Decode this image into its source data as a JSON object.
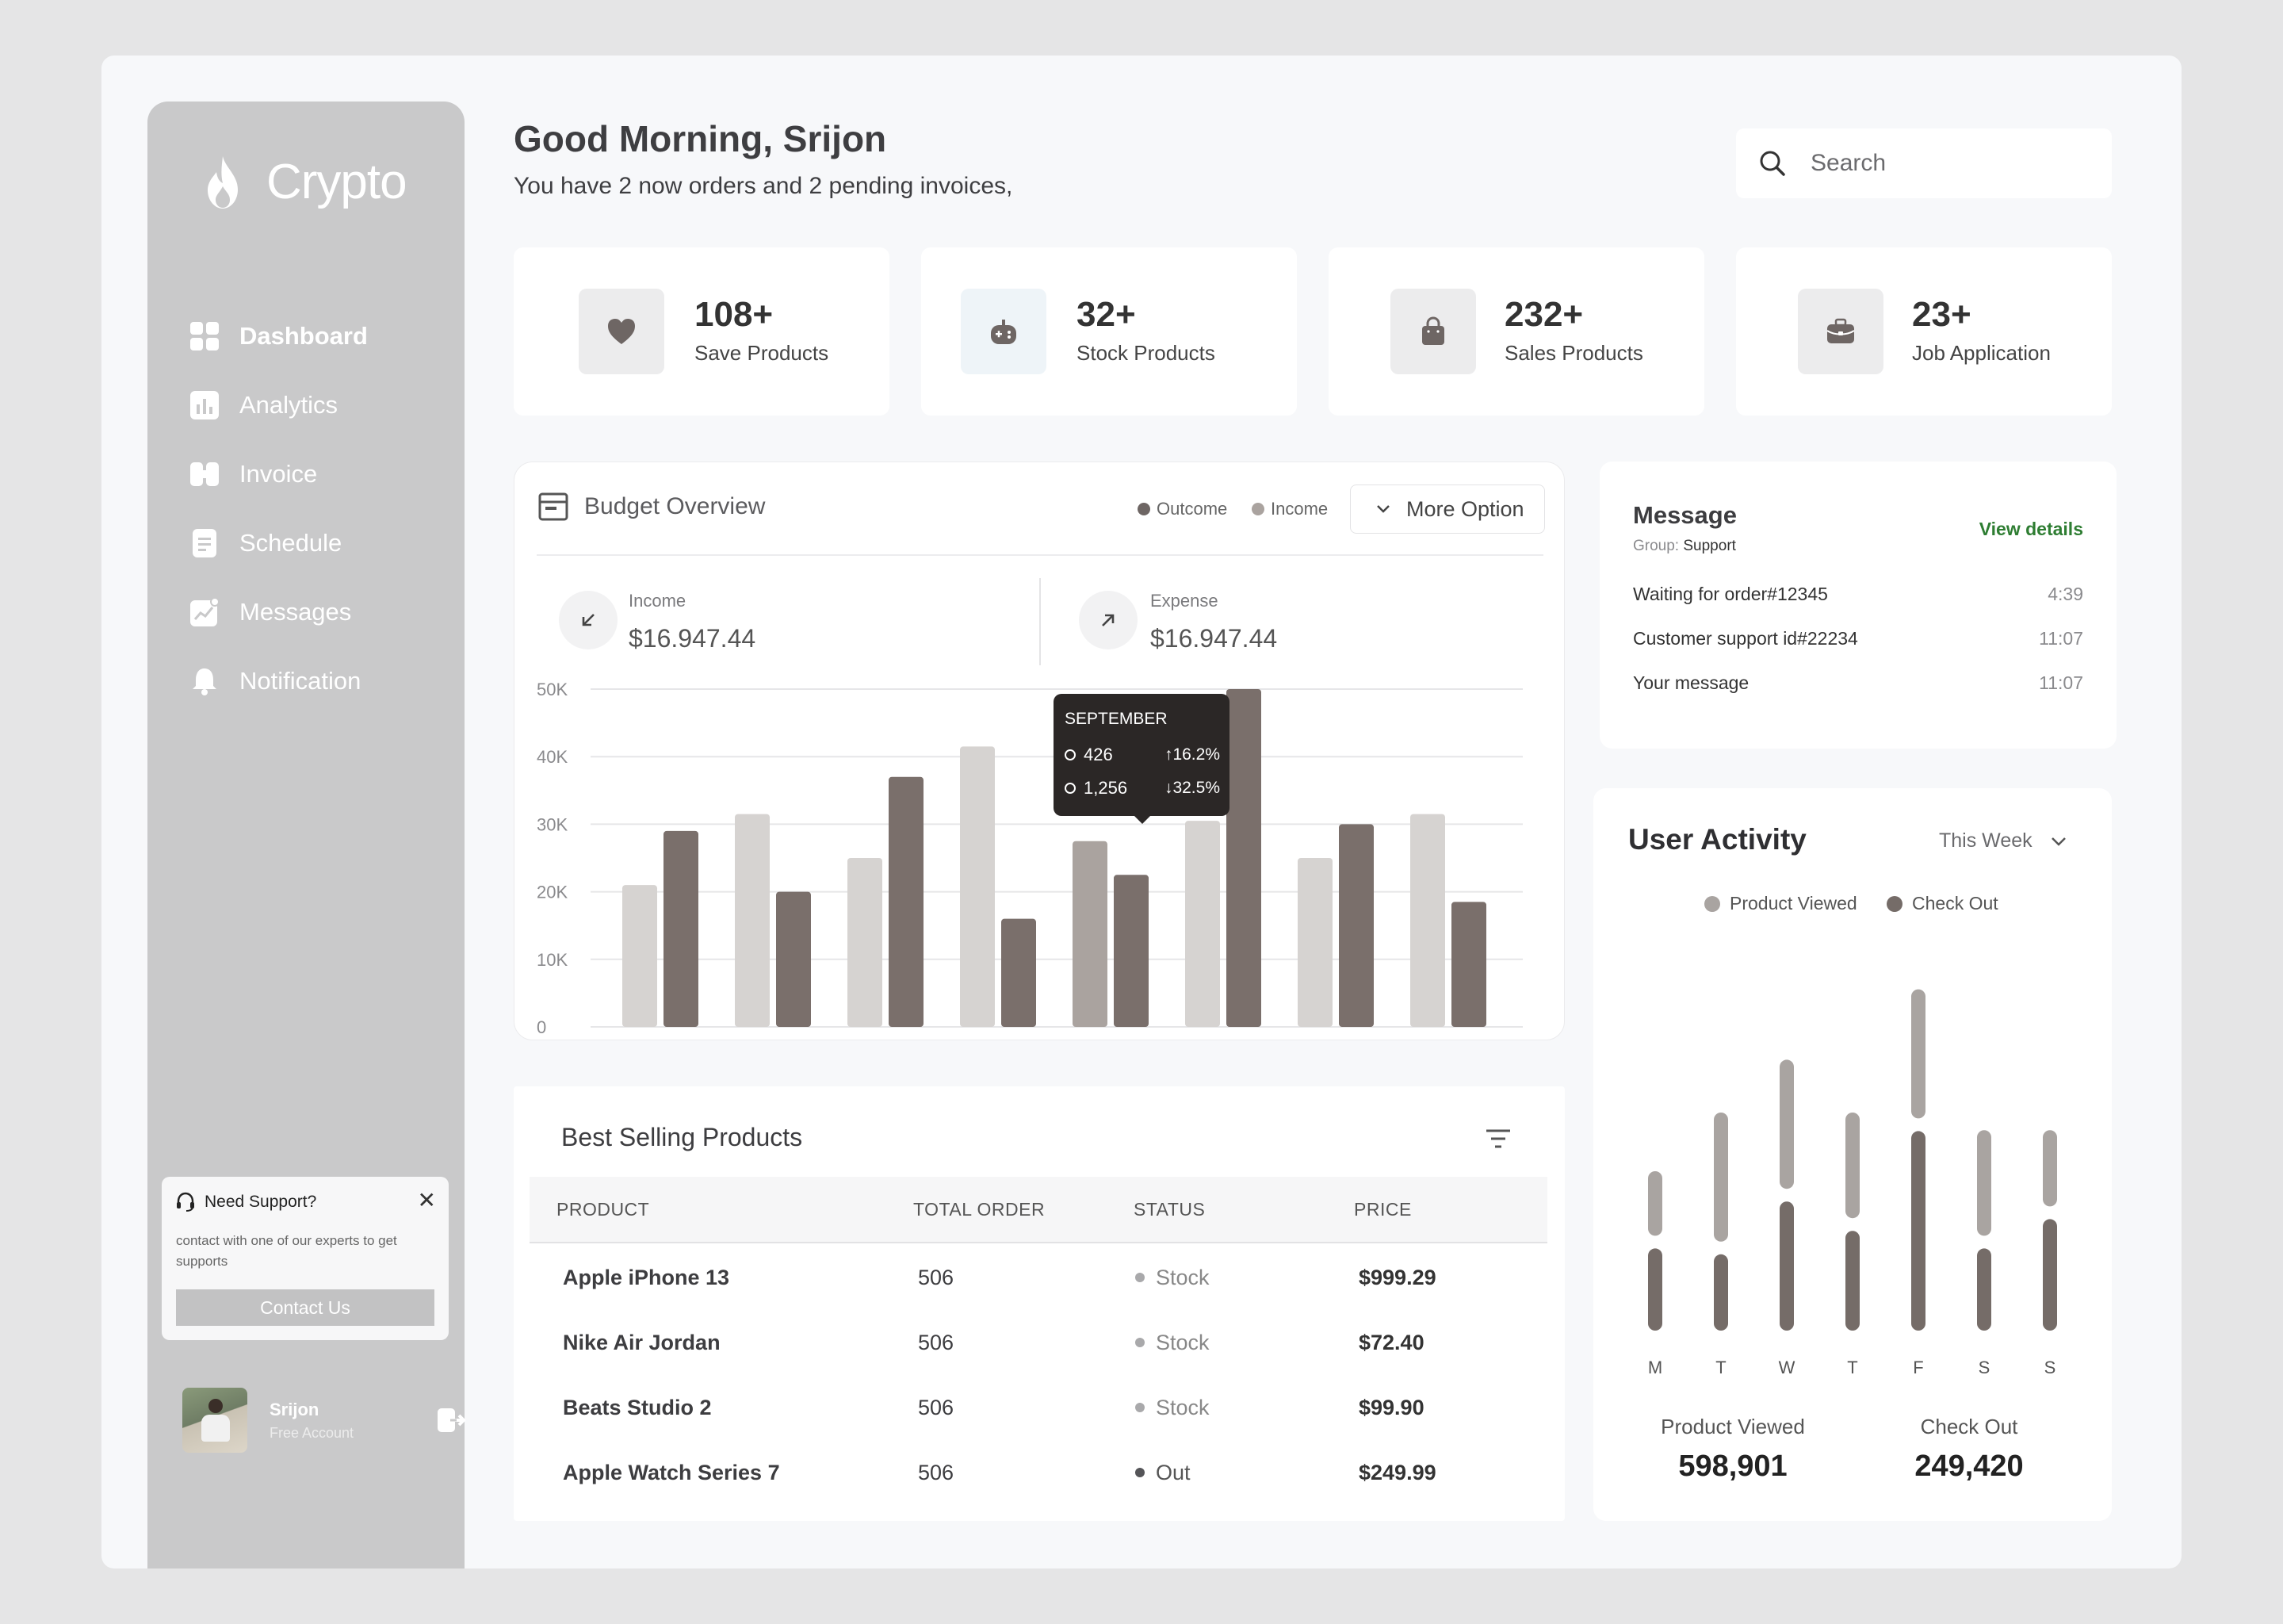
{
  "brand": {
    "name": "Crypto"
  },
  "sidebar": {
    "items": [
      {
        "label": "Dashboard",
        "icon": "dashboard-grid-icon",
        "active": true
      },
      {
        "label": "Analytics",
        "icon": "bar-chart-icon"
      },
      {
        "label": "Invoice",
        "icon": "invoice-icon"
      },
      {
        "label": "Schedule",
        "icon": "document-icon"
      },
      {
        "label": "Messages",
        "icon": "trend-line-icon"
      },
      {
        "label": "Notification",
        "icon": "bell-icon"
      }
    ],
    "support": {
      "title": "Need Support?",
      "text": "contact with one of our experts to get supports",
      "button": "Contact Us"
    },
    "user": {
      "name": "Srijon",
      "plan": "Free Account"
    }
  },
  "header": {
    "greeting": "Good Morning, Srijon",
    "subtitle": "You have 2 now orders and 2 pending invoices,",
    "search_placeholder": "Search"
  },
  "stats": [
    {
      "value": "108+",
      "label": "Save Products",
      "icon": "heart-icon"
    },
    {
      "value": "32+",
      "label": "Stock Products",
      "icon": "gamepad-icon"
    },
    {
      "value": "232+",
      "label": "Sales Products",
      "icon": "bag-icon"
    },
    {
      "value": "23+",
      "label": "Job Application",
      "icon": "briefcase-icon"
    }
  ],
  "budget": {
    "title": "Budget Overview",
    "legend": [
      "Outcome",
      "Income"
    ],
    "more_option": "More Option",
    "income": {
      "label": "Income",
      "value": "$16.947.44"
    },
    "expense": {
      "label": "Expense",
      "value": "$16.947.44"
    },
    "tooltip": {
      "title": "SEPTEMBER",
      "row1_value": "426",
      "row1_pct": "16.2%",
      "row2_value": "1,256",
      "row2_pct": "32.5%"
    }
  },
  "chart_data": [
    {
      "type": "bar",
      "title": "Budget Overview",
      "y_ticks": [
        "0",
        "10K",
        "20K",
        "30K",
        "40K",
        "50K"
      ],
      "ylim": [
        0,
        50000
      ],
      "grid": true,
      "highlight_index": 4,
      "series": [
        {
          "name": "Income",
          "values": [
            21000,
            31500,
            25000,
            41500,
            27500,
            30500,
            25000,
            31500
          ]
        },
        {
          "name": "Outcome",
          "values": [
            29000,
            20000,
            37000,
            16000,
            22500,
            50000,
            30000,
            18500
          ]
        }
      ],
      "colors": {
        "Income": "#d6d3d1",
        "Outcome": "#7a6f6b",
        "highlight": "#aaa39f"
      }
    },
    {
      "type": "bar",
      "title": "User Activity",
      "categories": [
        "M",
        "T",
        "W",
        "T",
        "F",
        "S",
        "S"
      ],
      "series": [
        {
          "name": "Product Viewed",
          "values": [
            11,
            22,
            22,
            18,
            22,
            18,
            13
          ]
        },
        {
          "name": "Check Out",
          "values": [
            14,
            13,
            22,
            17,
            34,
            14,
            19
          ]
        }
      ],
      "colors": {
        "Product Viewed": "#a9a4a1",
        "Check Out": "#756c68"
      }
    }
  ],
  "message": {
    "title": "Message",
    "group_label": "Group:",
    "group_value": "Support",
    "view_details": "View details",
    "items": [
      {
        "text": "Waiting for order#12345",
        "time": "4:39"
      },
      {
        "text": "Customer support id#22234",
        "time": "11:07"
      },
      {
        "text": "Your message",
        "time": "11:07"
      }
    ]
  },
  "activity": {
    "title": "User Activity",
    "range": "This Week",
    "legend": [
      "Product Viewed",
      "Check Out"
    ],
    "summary": [
      {
        "label": "Product Viewed",
        "value": "598,901"
      },
      {
        "label": "Check Out",
        "value": "249,420"
      }
    ]
  },
  "best_selling": {
    "title": "Best Selling Products",
    "columns": [
      "PRODUCT",
      "TOTAL ORDER",
      "STATUS",
      "PRICE"
    ],
    "rows": [
      {
        "product": "Apple iPhone 13",
        "total": "506",
        "status": "Stock",
        "price": "$999.29"
      },
      {
        "product": "Nike Air Jordan",
        "total": "506",
        "status": "Stock",
        "price": "$72.40"
      },
      {
        "product": "Beats Studio 2",
        "total": "506",
        "status": "Stock",
        "price": "$99.90"
      },
      {
        "product": "Apple Watch Series 7",
        "total": "506",
        "status": "Out",
        "price": "$249.99"
      }
    ],
    "status_colors": {
      "Stock": "#a9a9ab",
      "Out": "#555558"
    }
  }
}
